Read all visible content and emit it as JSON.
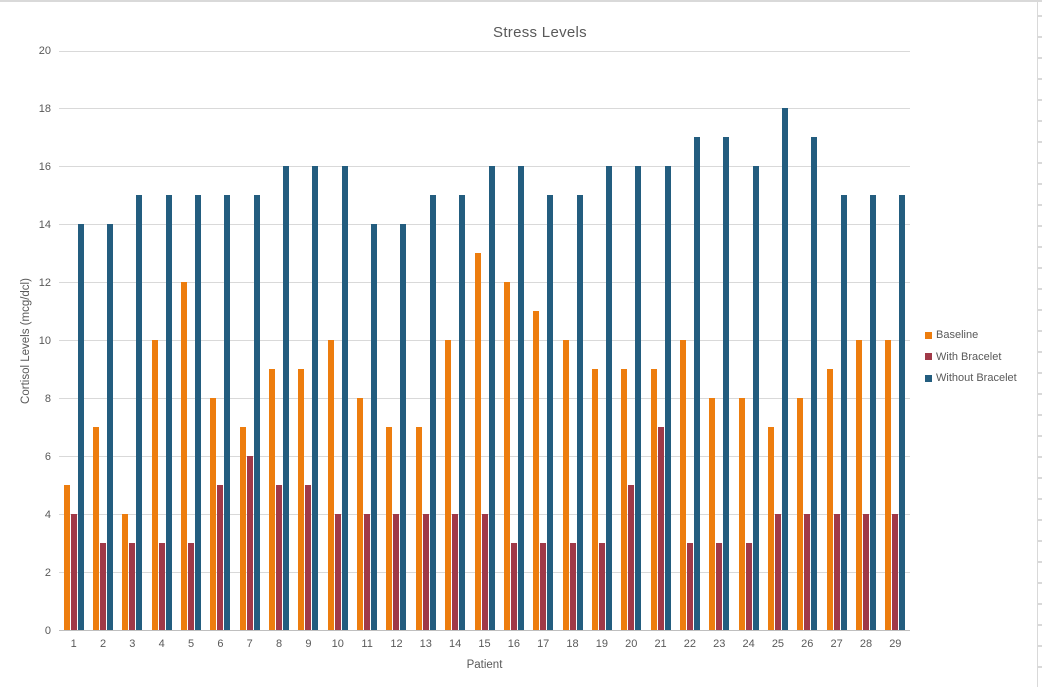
{
  "chart_data": {
    "type": "bar",
    "title": "Stress Levels",
    "xlabel": "Patient",
    "ylabel": "Cortisol Levels (mcg/dcl)",
    "ylim": [
      0,
      20
    ],
    "ytick_step": 2,
    "yticks": [
      "0",
      "2",
      "4",
      "6",
      "8",
      "10",
      "12",
      "14",
      "16",
      "18",
      "20"
    ],
    "grid": true,
    "legend_position": "right",
    "categories": [
      "1",
      "2",
      "3",
      "4",
      "5",
      "6",
      "7",
      "8",
      "9",
      "10",
      "11",
      "12",
      "13",
      "14",
      "15",
      "16",
      "17",
      "18",
      "19",
      "20",
      "21",
      "22",
      "23",
      "24",
      "25",
      "26",
      "27",
      "28",
      "29"
    ],
    "series": [
      {
        "name": "Baseline",
        "color": "#ED7D0E",
        "values": [
          5,
          7,
          4,
          10,
          12,
          8,
          7,
          9,
          9,
          10,
          8,
          7,
          7,
          10,
          13,
          12,
          11,
          10,
          9,
          9,
          9,
          10,
          8,
          8,
          7,
          8,
          9,
          10,
          10
        ]
      },
      {
        "name": "With Bracelet",
        "color": "#A03948",
        "values": [
          4,
          3,
          3,
          3,
          3,
          5,
          6,
          5,
          5,
          4,
          4,
          4,
          4,
          4,
          4,
          3,
          3,
          3,
          3,
          5,
          7,
          3,
          3,
          3,
          4,
          4,
          4,
          4,
          4
        ]
      },
      {
        "name": "Without Bracelet",
        "color": "#235D7F",
        "values": [
          14,
          14,
          15,
          15,
          15,
          15,
          15,
          16,
          16,
          16,
          14,
          14,
          15,
          15,
          16,
          16,
          15,
          15,
          16,
          16,
          16,
          17,
          17,
          16,
          18,
          17,
          15,
          15,
          15
        ]
      }
    ],
    "colors": {
      "gridline": "#D9D9D9",
      "axis_line": "#BFBFBF",
      "text": "#595959",
      "background": "#FFFFFF"
    }
  }
}
